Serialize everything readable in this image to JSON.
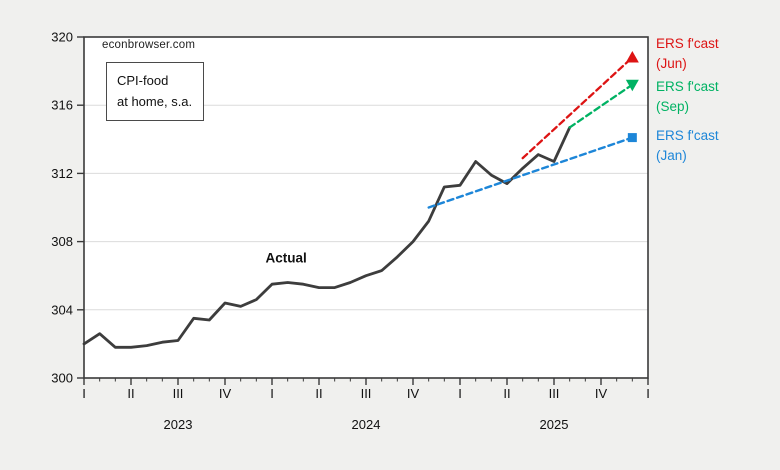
{
  "source": "econbrowser.com",
  "title_box": {
    "line1": "CPI-food",
    "line2": "at home, s.a."
  },
  "legend": {
    "position": "right-outside",
    "entries": [
      {
        "name": "ERS f'cast",
        "period": "(Jun)",
        "color": "#dd1414"
      },
      {
        "name": "ERS f'cast",
        "period": "(Sep)",
        "color": "#00b263"
      },
      {
        "name": "ERS f'cast",
        "period": "(Jan)",
        "color": "#1d86d8"
      }
    ]
  },
  "chart_data": {
    "type": "line",
    "title": "CPI-food at home, s.a.",
    "watermark": "econbrowser.com",
    "xlabel": "",
    "ylabel": "",
    "ylim": [
      300,
      320
    ],
    "yticks": [
      300,
      304,
      308,
      312,
      316,
      320
    ],
    "grid": "horizontal",
    "x_unit": "months since 2023-01",
    "x_range_months": [
      0,
      36
    ],
    "x_quarter_labels": [
      "I",
      "II",
      "III",
      "IV",
      "I",
      "II",
      "III",
      "IV",
      "I",
      "II",
      "III",
      "IV",
      "I"
    ],
    "years": [
      {
        "label": "2023",
        "mid_month": 6
      },
      {
        "label": "2024",
        "mid_month": 18
      },
      {
        "label": "2025",
        "mid_month": 30
      }
    ],
    "annotation": {
      "text": "Actual",
      "x_month": 12.9,
      "value": 307.0
    },
    "series": [
      {
        "name": "Actual",
        "color": "#3d3d3d",
        "style": "solid",
        "width": 2.8,
        "marker": "none",
        "x": [
          0,
          1,
          2,
          3,
          4,
          5,
          6,
          7,
          8,
          9,
          10,
          11,
          12,
          13,
          14,
          15,
          16,
          17,
          18,
          19,
          20,
          21,
          22,
          23,
          24,
          25,
          26,
          27,
          28,
          29,
          30,
          31
        ],
        "values": [
          302.0,
          302.6,
          301.8,
          301.8,
          301.9,
          302.1,
          302.2,
          303.5,
          303.4,
          304.4,
          304.2,
          304.6,
          305.5,
          305.6,
          305.5,
          305.3,
          305.3,
          305.6,
          306.0,
          306.3,
          307.1,
          308.0,
          309.2,
          311.2,
          311.3,
          312.7,
          311.9,
          311.4,
          312.3,
          313.1,
          312.7,
          314.7
        ]
      },
      {
        "name": "ERS f'cast (Jun)",
        "color": "#dd1414",
        "style": "dashed",
        "width": 2.3,
        "marker": "triangle-up",
        "x": [
          28,
          35
        ],
        "values": [
          312.9,
          318.8
        ]
      },
      {
        "name": "ERS f'cast (Sep)",
        "color": "#00b263",
        "style": "dashed",
        "width": 2.3,
        "marker": "triangle-down",
        "x": [
          31,
          35
        ],
        "values": [
          314.7,
          317.2
        ]
      },
      {
        "name": "ERS f'cast (Jan)",
        "color": "#1d86d8",
        "style": "dashed",
        "width": 2.4,
        "marker": "square",
        "x": [
          22,
          35
        ],
        "values": [
          310.0,
          314.1
        ]
      }
    ]
  }
}
